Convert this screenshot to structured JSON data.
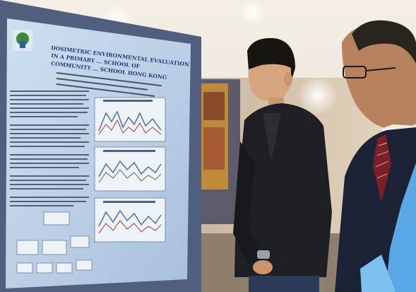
{
  "photo": {
    "subject": "poster-session",
    "colors": {
      "poster_bg": "#b9cde3",
      "poster_board": "#4f5f7d",
      "jacket": "#1e1f24",
      "suit": "#1b2235",
      "tie": "#7b1f2a",
      "lanyard": "#5aa9e6"
    }
  },
  "poster": {
    "title_line1": "DOSIMETRIC ENVIRONMENTAL EVALUATION",
    "title_line2": "IN A PRIMARY ... SCHOOL OF",
    "title_line3": "COMMUNITY ... SCHOOL HONG KONG"
  },
  "chart_data": []
}
